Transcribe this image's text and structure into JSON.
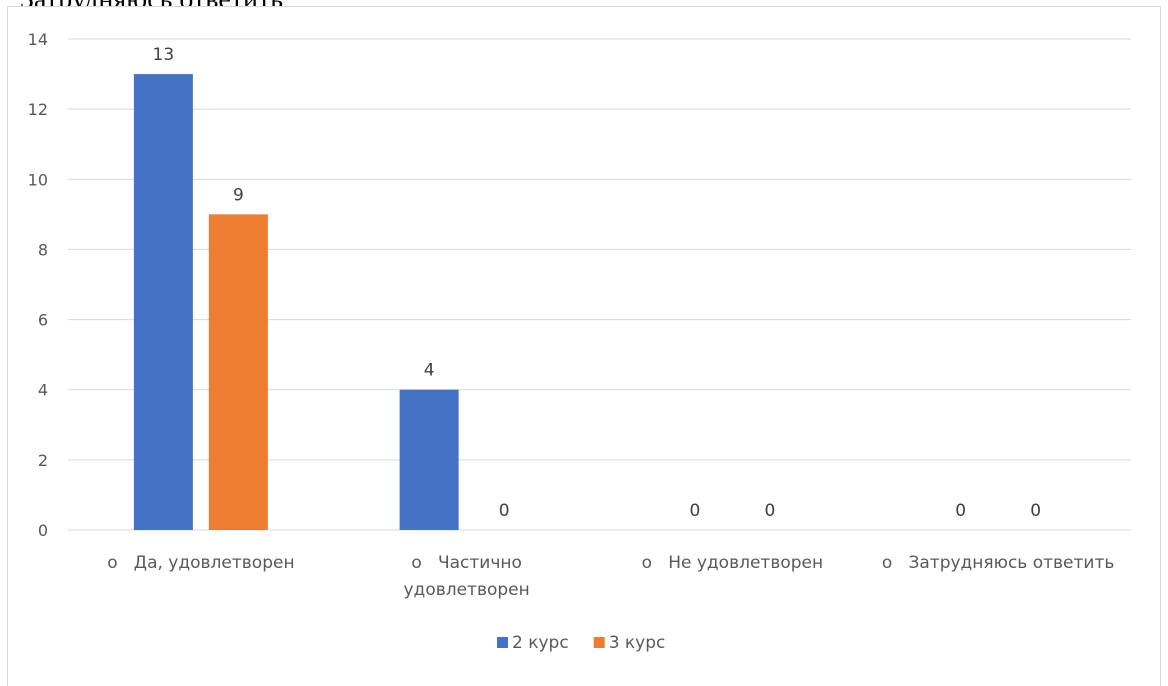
{
  "page": {
    "top_text": "Затрудняюсь ответить"
  },
  "chart_data": {
    "type": "bar",
    "categories": [
      "o   Да, удовлетворен",
      "o   Частично\nудовлетворен",
      "o   Не удовлетворен",
      "o   Затрудняюсь ответить"
    ],
    "series": [
      {
        "name": "2 курс",
        "values": [
          13,
          4,
          0,
          0
        ],
        "color": "#4472C4"
      },
      {
        "name": "3 курс",
        "values": [
          9,
          0,
          0,
          0
        ],
        "color": "#ED7D31"
      }
    ],
    "ylim": [
      0,
      14
    ],
    "yticks": [
      0,
      2,
      4,
      6,
      8,
      10,
      12,
      14
    ],
    "grid": true,
    "legend_position": "bottom"
  }
}
